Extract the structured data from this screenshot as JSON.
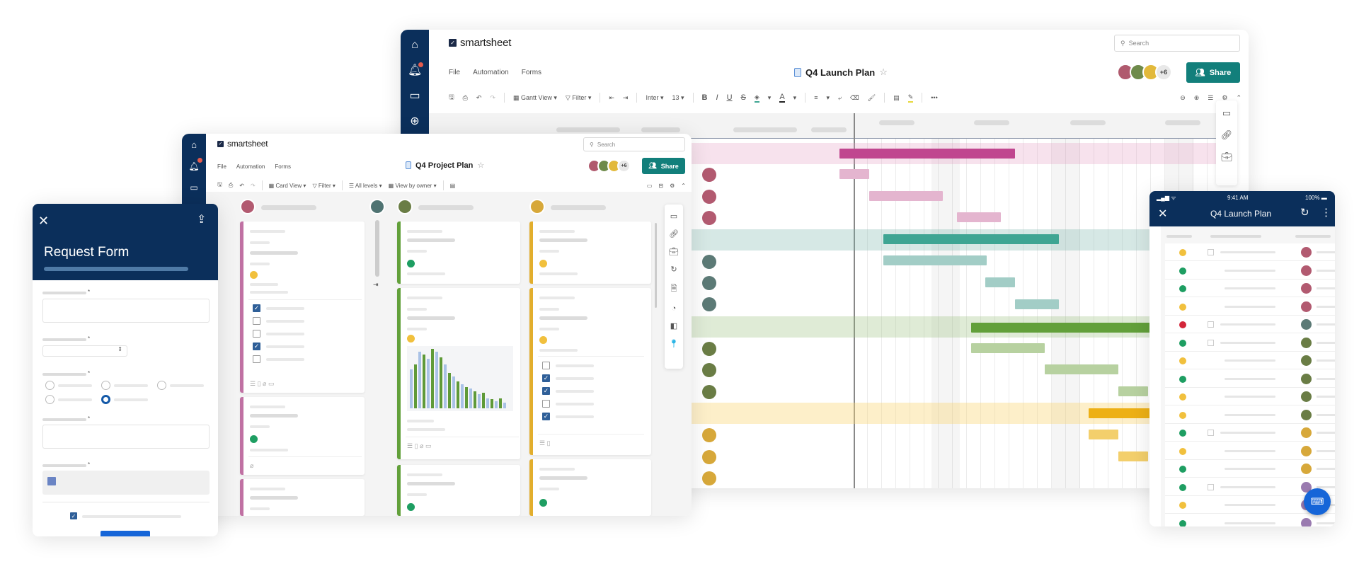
{
  "colors": {
    "navy": "#0b2f5b",
    "teal_share": "#127f7b",
    "pink": "#c0468f",
    "teal": "#3ea593",
    "green": "#62a03a",
    "yellow": "#edb015",
    "status_green": "#1e9e62",
    "status_yellow": "#f1c03d",
    "status_red": "#d3263a",
    "fab_blue": "#1565d8"
  },
  "gantt_window": {
    "app_name": "smartsheet",
    "menu": [
      "File",
      "Automation",
      "Forms"
    ],
    "sheet_title": "Q4 Launch Plan",
    "search_placeholder": "Search",
    "collaborators_more": "+6",
    "share_label": "Share",
    "toolbar": {
      "view_label": "Gantt View",
      "filter_label": "Filter",
      "font": "Inter",
      "font_size": "13",
      "more": "•••"
    },
    "rail_icons": [
      "home-icon",
      "bell-icon",
      "folder-icon",
      "plus-icon"
    ],
    "right_panel_icons": [
      "comment-icon",
      "link-icon",
      "briefcase-icon",
      "refresh-icon",
      "file-icon",
      "dashboard-icon",
      "book-icon",
      "pin-icon"
    ],
    "groups": [
      {
        "color": "pink",
        "rows": 3
      },
      {
        "color": "teal",
        "rows": 3
      },
      {
        "color": "green",
        "rows": 3
      },
      {
        "color": "yellow",
        "rows": 3
      }
    ]
  },
  "card_window": {
    "app_name": "smartsheet",
    "menu": [
      "File",
      "Automation",
      "Forms"
    ],
    "sheet_title": "Q4 Project Plan",
    "search_placeholder": "Search",
    "collaborators_more": "+6",
    "share_label": "Share",
    "toolbar": {
      "view_label": "Card View",
      "filter_label": "Filter",
      "levels_label": "All levels",
      "group_label": "View by owner"
    },
    "lanes": [
      {
        "color": "pink"
      },
      {
        "color": "green"
      },
      {
        "color": "yellow"
      }
    ],
    "chart_card": {
      "bars": [
        {
          "blue": 55,
          "green": 62
        },
        {
          "blue": 80,
          "green": 76
        },
        {
          "blue": 70,
          "green": 84
        },
        {
          "blue": 80,
          "green": 72
        },
        {
          "blue": 62,
          "green": 50
        },
        {
          "blue": 45,
          "green": 38
        },
        {
          "blue": 34,
          "green": 30
        },
        {
          "blue": 28,
          "green": 24
        },
        {
          "blue": 20,
          "green": 22
        },
        {
          "blue": 14,
          "green": 13
        },
        {
          "blue": 10,
          "green": 14
        },
        {
          "blue": 8,
          "green": 0
        }
      ]
    }
  },
  "form_window": {
    "title": "Request Form",
    "required_marker": "*",
    "fields": [
      "text",
      "dropdown",
      "radio",
      "text",
      "date"
    ],
    "radio_options": 5,
    "radio_selected": 4
  },
  "mobile_window": {
    "status_time": "9:41 AM",
    "battery": "100%",
    "title": "Q4 Launch Plan",
    "rows": [
      {
        "status": "yellow",
        "parent": true,
        "owner": "pink"
      },
      {
        "status": "green",
        "parent": false,
        "owner": "pink"
      },
      {
        "status": "green",
        "parent": false,
        "owner": "pink"
      },
      {
        "status": "yellow",
        "parent": false,
        "owner": "pink"
      },
      {
        "status": "red",
        "parent": true,
        "owner": "teal"
      },
      {
        "status": "green",
        "parent": true,
        "owner": "green"
      },
      {
        "status": "yellow",
        "parent": false,
        "owner": "green"
      },
      {
        "status": "green",
        "parent": false,
        "owner": "green"
      },
      {
        "status": "yellow",
        "parent": false,
        "owner": "green"
      },
      {
        "status": "yellow",
        "parent": false,
        "owner": "green"
      },
      {
        "status": "green",
        "parent": true,
        "owner": "yellow"
      },
      {
        "status": "yellow",
        "parent": false,
        "owner": "yellow"
      },
      {
        "status": "green",
        "parent": false,
        "owner": "yellow"
      },
      {
        "status": "green",
        "parent": true,
        "owner": "purple"
      },
      {
        "status": "yellow",
        "parent": false,
        "owner": "purple"
      },
      {
        "status": "green",
        "parent": false,
        "owner": "purple"
      }
    ]
  }
}
